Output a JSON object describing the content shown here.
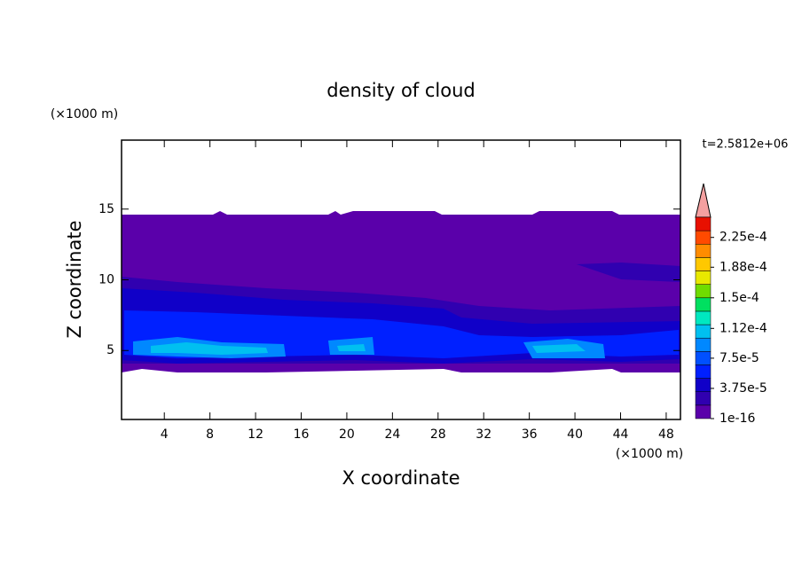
{
  "chart_data": {
    "type": "contour",
    "title": "density of cloud",
    "xlabel": "X coordinate",
    "ylabel": "Z coordinate",
    "x_unit": "(×1000 m)",
    "y_unit": "(×1000 m)",
    "time_label": "t=2.5812e+06",
    "xlim": [
      0.25,
      49.25
    ],
    "xticks": [
      4,
      8,
      12,
      16,
      20,
      24,
      28,
      32,
      36,
      40,
      44,
      48
    ],
    "ylim": [
      0.125,
      19.875
    ],
    "yticks": [
      5,
      10,
      15
    ],
    "colorbar": {
      "clim": [
        0,
        0.00025
      ],
      "extend_color": "#f4a0a0",
      "colors": [
        "#5a00aa",
        "#3000b0",
        "#1000c8",
        "#0020ff",
        "#0050ff",
        "#0088ff",
        "#00c0f0",
        "#00e8c0",
        "#00e060",
        "#70dc00",
        "#e8e800",
        "#ffc800",
        "#ff8c00",
        "#ff4a00",
        "#e81000"
      ],
      "ticks": [
        {
          "value": 1e-16,
          "label": "1e-16"
        },
        {
          "value": 3.75e-05,
          "label": "3.75e-5"
        },
        {
          "value": 7.5e-05,
          "label": "7.5e-5"
        },
        {
          "value": 0.000112,
          "label": "1.12e-4"
        },
        {
          "value": 0.00015,
          "label": "1.5e-4"
        },
        {
          "value": 0.000188,
          "label": "1.88e-4"
        },
        {
          "value": 0.000225,
          "label": "2.25e-4"
        }
      ]
    }
  }
}
